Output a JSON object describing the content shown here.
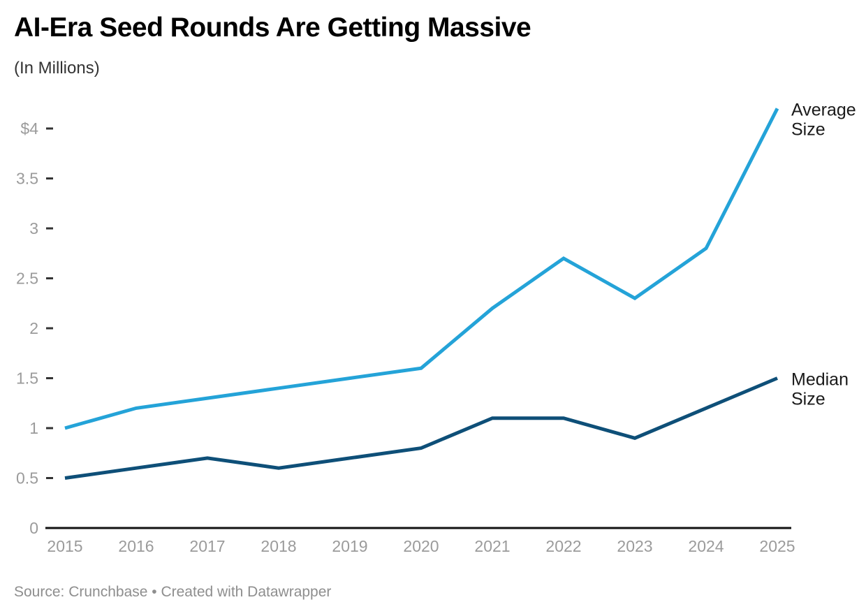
{
  "header": {
    "title": "AI-Era Seed Rounds Are Getting Massive",
    "subtitle": "(In Millions)"
  },
  "footer": {
    "source": "Source: Crunchbase • Created with Datawrapper"
  },
  "chart_data": {
    "type": "line",
    "title": "AI-Era Seed Rounds Are Getting Massive",
    "subtitle": "(In Millions)",
    "xlabel": "",
    "ylabel": "",
    "x": [
      2015,
      2016,
      2017,
      2018,
      2019,
      2020,
      2021,
      2022,
      2023,
      2024,
      2025
    ],
    "series": [
      {
        "name": "Average Size",
        "label_lines": [
          "Average",
          "Size"
        ],
        "color": "#24a3d8",
        "values": [
          1.0,
          1.2,
          1.3,
          1.4,
          1.5,
          1.6,
          2.2,
          2.7,
          2.3,
          2.8,
          4.2
        ]
      },
      {
        "name": "Median Size",
        "label_lines": [
          "Median",
          "Size"
        ],
        "color": "#0e4f78",
        "values": [
          0.5,
          0.6,
          0.7,
          0.6,
          0.7,
          0.8,
          1.1,
          1.1,
          0.9,
          1.2,
          1.5
        ]
      }
    ],
    "y_ticks": [
      {
        "value": 0,
        "label": "0"
      },
      {
        "value": 0.5,
        "label": "0.5"
      },
      {
        "value": 1,
        "label": "1"
      },
      {
        "value": 1.5,
        "label": "1.5"
      },
      {
        "value": 2,
        "label": "2"
      },
      {
        "value": 2.5,
        "label": "2.5"
      },
      {
        "value": 3,
        "label": "3"
      },
      {
        "value": 3.5,
        "label": "3.5"
      },
      {
        "value": 4,
        "label": "$4"
      }
    ],
    "ylim": [
      0,
      4.3
    ],
    "grid": false,
    "legend_position": "direct-labels-right-of-line-ends",
    "style": {
      "tick_label_color": "#9b9b9b",
      "tick_mark_color": "#333333",
      "axis_line_color": "#111111",
      "series_label_color": "#1a1a1a"
    }
  }
}
